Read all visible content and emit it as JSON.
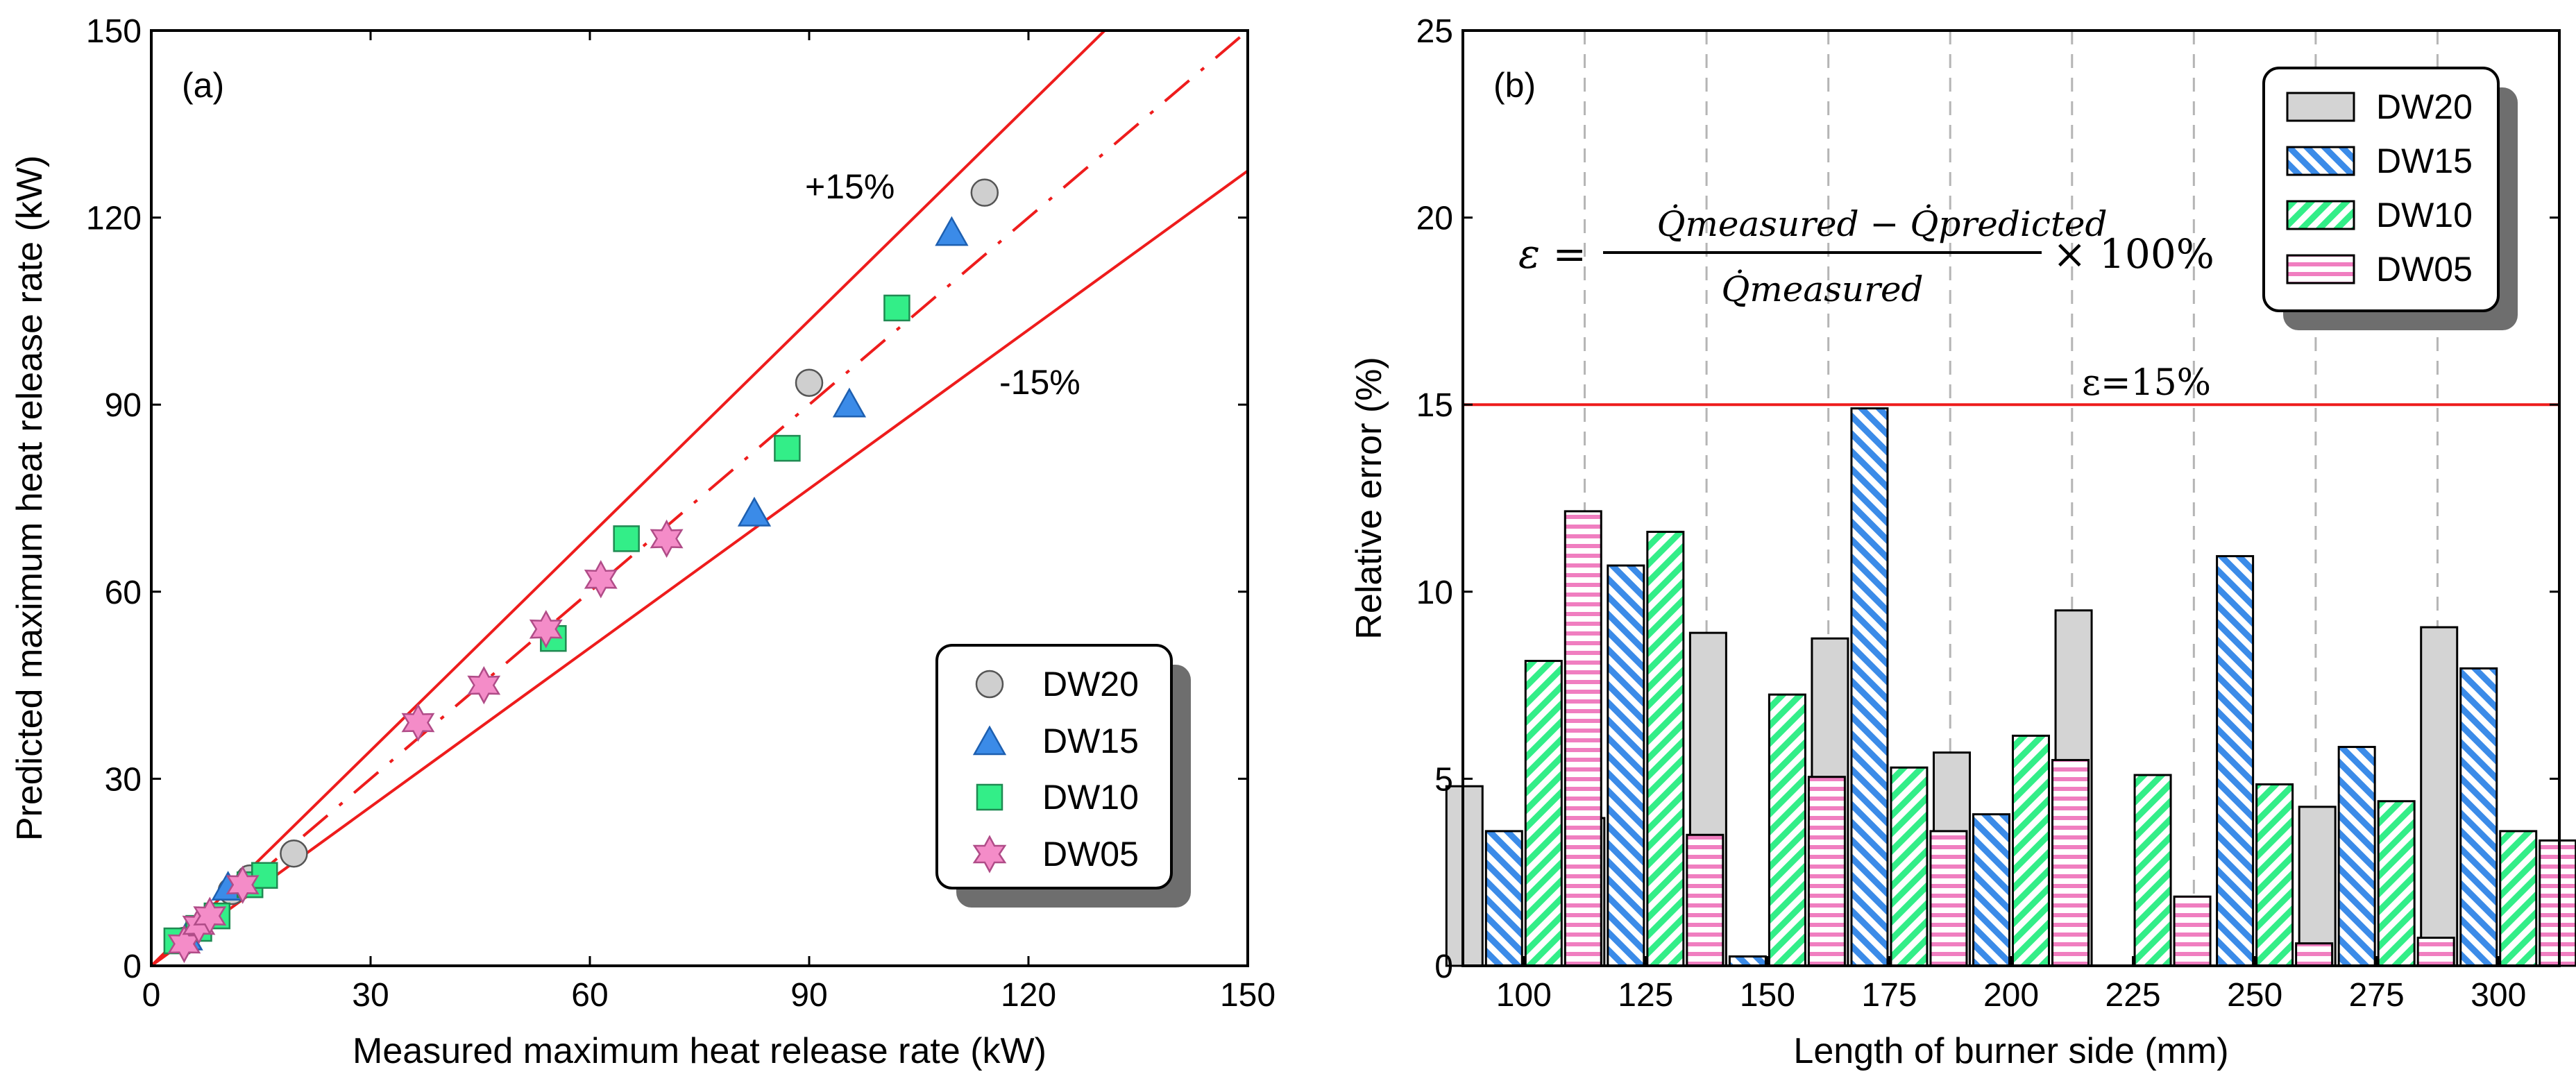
{
  "chart_data": [
    {
      "type": "scatter",
      "panel_label": "(a)",
      "xlabel": "Measured maximum heat release rate (kW)",
      "ylabel": "Predicted maximum heat release rate (kW)",
      "xlim": [
        0,
        150
      ],
      "ylim": [
        0,
        150
      ],
      "xticks": [
        "0",
        "30",
        "60",
        "90",
        "120",
        "150"
      ],
      "yticks": [
        "0",
        "30",
        "60",
        "90",
        "120",
        "150"
      ],
      "lines": {
        "upper_label": "+15%",
        "lower_label": "-15%",
        "upper_slope": 1.15,
        "lower_slope": 0.85,
        "parity_slope": 1.0
      },
      "legend_position": "bottom-right",
      "series": [
        {
          "name": "DW20",
          "marker": "circle",
          "color": "#cfcfcf",
          "points": [
            [
              4.5,
              4.0
            ],
            [
              11.0,
              12.0
            ],
            [
              13.5,
              14.0
            ],
            [
              19.5,
              18.0
            ],
            [
              90.0,
              93.5
            ],
            [
              114.0,
              124.0
            ]
          ]
        },
        {
          "name": "DW15",
          "marker": "triangle",
          "color": "#3b8be8",
          "points": [
            [
              4.8,
              4.5
            ],
            [
              10.5,
              12.5
            ],
            [
              82.5,
              72.5
            ],
            [
              95.5,
              90.0
            ],
            [
              109.5,
              117.5
            ]
          ]
        },
        {
          "name": "DW10",
          "marker": "square",
          "color": "#33ee88",
          "points": [
            [
              3.5,
              4.0
            ],
            [
              6.5,
              6.0
            ],
            [
              9.0,
              8.0
            ],
            [
              13.5,
              13.0
            ],
            [
              15.5,
              14.5
            ],
            [
              55.0,
              52.5
            ],
            [
              65.0,
              68.5
            ],
            [
              87.0,
              83.0
            ],
            [
              102.0,
              105.5
            ]
          ]
        },
        {
          "name": "DW05",
          "marker": "star",
          "color": "#f48cc8",
          "points": [
            [
              4.5,
              3.5
            ],
            [
              6.5,
              6.5
            ],
            [
              8.0,
              8.0
            ],
            [
              12.5,
              13.0
            ],
            [
              36.5,
              39.0
            ],
            [
              45.5,
              45.0
            ],
            [
              54.0,
              54.0
            ],
            [
              61.5,
              62.0
            ],
            [
              70.5,
              68.5
            ]
          ]
        }
      ]
    },
    {
      "type": "bar",
      "panel_label": "(b)",
      "xlabel": "Length of burner side (mm)",
      "ylabel": "Relative error (%)",
      "ylim": [
        0,
        25
      ],
      "yticks": [
        "0",
        "5",
        "10",
        "15",
        "20",
        "25"
      ],
      "categories": [
        "100",
        "125",
        "150",
        "175",
        "200",
        "225",
        "250",
        "275",
        "300"
      ],
      "threshold": {
        "value": 15,
        "label": "ε=15%"
      },
      "formula": {
        "lhs": "ε =",
        "numerator": "Q̇measured − Q̇predicted",
        "denominator": "Q̇measured",
        "factor": "× 100%"
      },
      "legend_position": "top-right",
      "series": [
        {
          "name": "DW20",
          "pattern": "solid",
          "color": "#d4d4d4",
          "values": [
            4.8,
            3.95,
            8.9,
            8.75,
            5.7,
            9.5,
            0,
            4.25,
            9.05
          ]
        },
        {
          "name": "DW15",
          "pattern": "diagonal",
          "color": "#3b8be8",
          "values": [
            3.6,
            10.7,
            0.25,
            14.9,
            4.05,
            0,
            10.95,
            5.85,
            7.95
          ]
        },
        {
          "name": "DW10",
          "pattern": "diagonal-back",
          "color": "#33ee88",
          "values": [
            8.15,
            11.6,
            7.25,
            5.3,
            6.15,
            5.1,
            4.85,
            4.4,
            3.6
          ]
        },
        {
          "name": "DW05",
          "pattern": "horizontal",
          "color": "#f07ec0",
          "values": [
            12.15,
            3.5,
            5.05,
            3.6,
            5.5,
            1.85,
            0.6,
            0.75,
            3.35
          ]
        }
      ]
    }
  ]
}
